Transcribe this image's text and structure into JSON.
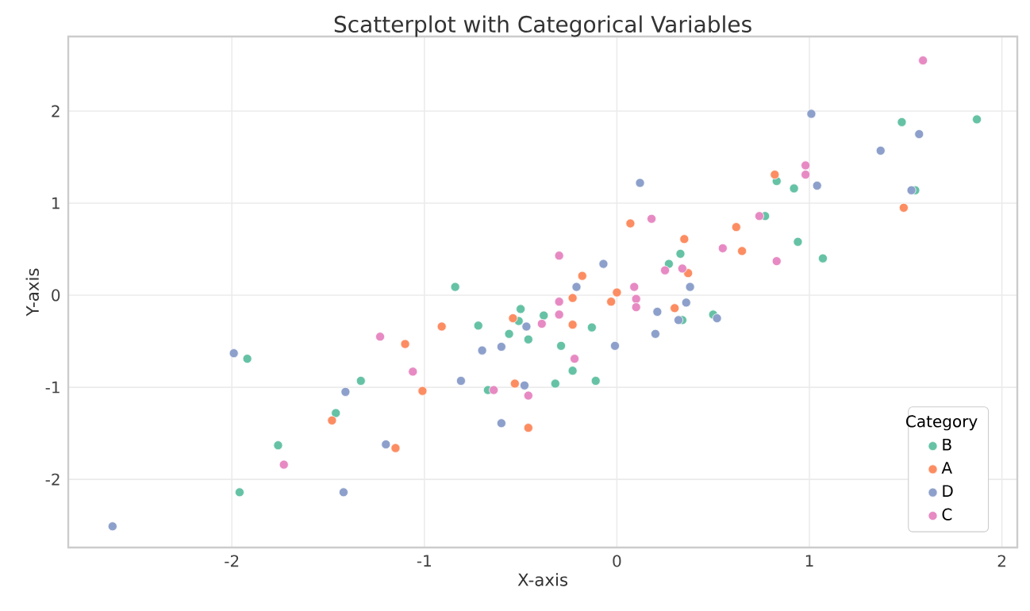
{
  "chart_data": {
    "type": "scatter",
    "title": "Scatterplot with Categorical Variables",
    "xlabel": "X-axis",
    "ylabel": "Y-axis",
    "legend_title": "Category",
    "xlim": [
      -2.85,
      2.08
    ],
    "ylim": [
      -2.74,
      2.81
    ],
    "xticks": [
      -2,
      -1,
      0,
      1,
      2
    ],
    "yticks": [
      -2,
      -1,
      0,
      1,
      2
    ],
    "grid": true,
    "legend": "bottom right",
    "marker": "circle",
    "series": [
      {
        "name": "B",
        "color": "#66c2a5",
        "x": [
          -1.92,
          -1.33,
          -1.46,
          -1.76,
          -1.96,
          -0.84,
          -0.5,
          -0.51,
          -0.38,
          -0.72,
          -0.13,
          -0.56,
          -0.46,
          -0.29,
          -0.23,
          -0.67,
          -0.32,
          -0.11,
          0.83,
          0.92,
          0.77,
          0.33,
          0.94,
          1.07,
          0.27,
          0.34,
          0.5,
          1.48,
          1.87,
          1.55
        ],
        "values": [
          -0.69,
          -0.93,
          -1.28,
          -1.63,
          -2.14,
          0.09,
          -0.15,
          -0.28,
          -0.22,
          -0.33,
          -0.35,
          -0.42,
          -0.48,
          -0.55,
          -0.82,
          -1.03,
          -0.96,
          -0.93,
          1.24,
          1.16,
          0.86,
          0.45,
          0.58,
          0.4,
          0.34,
          -0.27,
          -0.21,
          1.88,
          1.91,
          1.14
        ]
      },
      {
        "name": "A",
        "color": "#fc8d62",
        "x": [
          -1.48,
          -0.18,
          -0.23,
          -0.03,
          0.0,
          -0.54,
          -0.91,
          -0.23,
          -1.1,
          -1.01,
          -0.53,
          -0.46,
          -1.15,
          0.82,
          0.07,
          0.62,
          0.35,
          0.65,
          0.37,
          0.3,
          1.49
        ],
        "values": [
          -1.36,
          0.21,
          -0.03,
          -0.07,
          0.03,
          -0.25,
          -0.34,
          -0.32,
          -0.53,
          -1.04,
          -0.96,
          -1.44,
          -1.66,
          1.31,
          0.78,
          0.74,
          0.61,
          0.48,
          0.24,
          -0.14,
          0.95
        ]
      },
      {
        "name": "D",
        "color": "#8da0cb",
        "x": [
          -1.99,
          -1.41,
          -1.42,
          -2.62,
          -0.07,
          -0.21,
          -0.47,
          -0.7,
          -0.6,
          -0.01,
          -0.81,
          -0.48,
          -0.6,
          -1.2,
          1.01,
          1.04,
          0.12,
          0.38,
          0.21,
          0.36,
          0.32,
          0.52,
          0.2,
          1.57,
          1.37,
          1.53
        ],
        "values": [
          -0.63,
          -1.05,
          -2.14,
          -2.51,
          0.34,
          0.09,
          -0.34,
          -0.6,
          -0.56,
          -0.55,
          -0.93,
          -0.98,
          -1.39,
          -1.62,
          1.97,
          1.19,
          1.22,
          0.09,
          -0.18,
          -0.08,
          -0.27,
          -0.25,
          -0.42,
          1.75,
          1.57,
          1.14
        ]
      },
      {
        "name": "C",
        "color": "#e78ac3",
        "x": [
          -1.23,
          -1.73,
          -0.3,
          -0.3,
          -0.3,
          -0.39,
          -0.22,
          -1.06,
          -0.64,
          -0.46,
          0.98,
          0.98,
          0.18,
          0.74,
          0.55,
          0.83,
          0.25,
          0.34,
          0.09,
          0.1,
          0.1,
          1.59
        ],
        "values": [
          -0.45,
          -1.84,
          0.43,
          -0.07,
          -0.21,
          -0.31,
          -0.69,
          -0.83,
          -1.03,
          -1.09,
          1.41,
          1.31,
          0.83,
          0.86,
          0.51,
          0.37,
          0.27,
          0.29,
          0.09,
          -0.04,
          -0.13,
          2.55
        ]
      }
    ]
  }
}
